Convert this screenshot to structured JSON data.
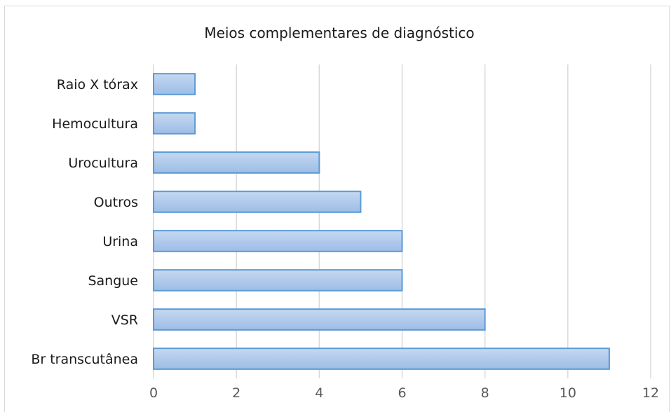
{
  "chart_data": {
    "type": "bar",
    "orientation": "horizontal",
    "title": "Meios complementares de diagnóstico",
    "categories": [
      "Raio X tórax",
      "Hemocultura",
      "Urocultura",
      "Outros",
      "Urina ",
      "Sangue",
      "VSR",
      "Br transcutânea"
    ],
    "values": [
      1,
      1,
      4,
      5,
      6,
      6,
      8,
      11
    ],
    "xlim": [
      0,
      12
    ],
    "xticks": [
      0,
      2,
      4,
      6,
      8,
      10,
      12
    ],
    "grid": "vertical",
    "legend": "none",
    "bar_fill": "#a9c4eb",
    "bar_stroke": "#5b9bd5",
    "grid_color": "#d9d9d9"
  }
}
